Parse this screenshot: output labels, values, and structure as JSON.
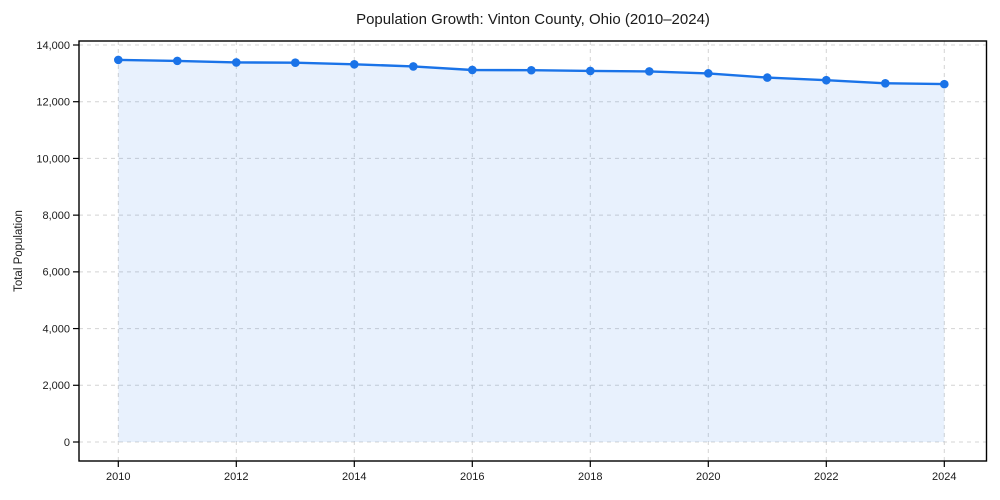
{
  "figure": {
    "background": "#ffffff"
  },
  "chart_data": {
    "type": "line",
    "title": "Population Growth: Vinton County, Ohio (2010–2024)",
    "xlabel": "",
    "ylabel": "Total Population",
    "x": [
      2010,
      2011,
      2012,
      2013,
      2014,
      2015,
      2016,
      2017,
      2018,
      2019,
      2020,
      2021,
      2022,
      2023,
      2024
    ],
    "series": [
      {
        "name": "Total Population",
        "values": [
          13475,
          13440,
          13385,
          13375,
          13320,
          13245,
          13120,
          13110,
          13085,
          13070,
          13000,
          12850,
          12760,
          12650,
          12620
        ]
      }
    ],
    "ylim": [
      0,
      14000
    ],
    "yticks": [
      0,
      2000,
      4000,
      6000,
      8000,
      10000,
      12000,
      14000
    ],
    "ytick_labels": [
      "0",
      "2,000",
      "4,000",
      "6,000",
      "8,000",
      "10,000",
      "12,000",
      "14,000"
    ],
    "xticks": [
      2010,
      2012,
      2014,
      2016,
      2018,
      2020,
      2022,
      2024
    ],
    "xtick_labels": [
      "2010",
      "2012",
      "2014",
      "2016",
      "2018",
      "2020",
      "2022",
      "2024"
    ],
    "grid": true,
    "grid_style": "dashed",
    "legend_position": "none",
    "marker": "circle",
    "area_fill": true,
    "colors": {
      "line": "#1a73e8",
      "marker": "#1a73e8",
      "area_fill": "rgba(26,115,232,0.10)",
      "grid": "#d4d4d4",
      "axis": "#000000",
      "text": "#1a1a1a"
    }
  }
}
